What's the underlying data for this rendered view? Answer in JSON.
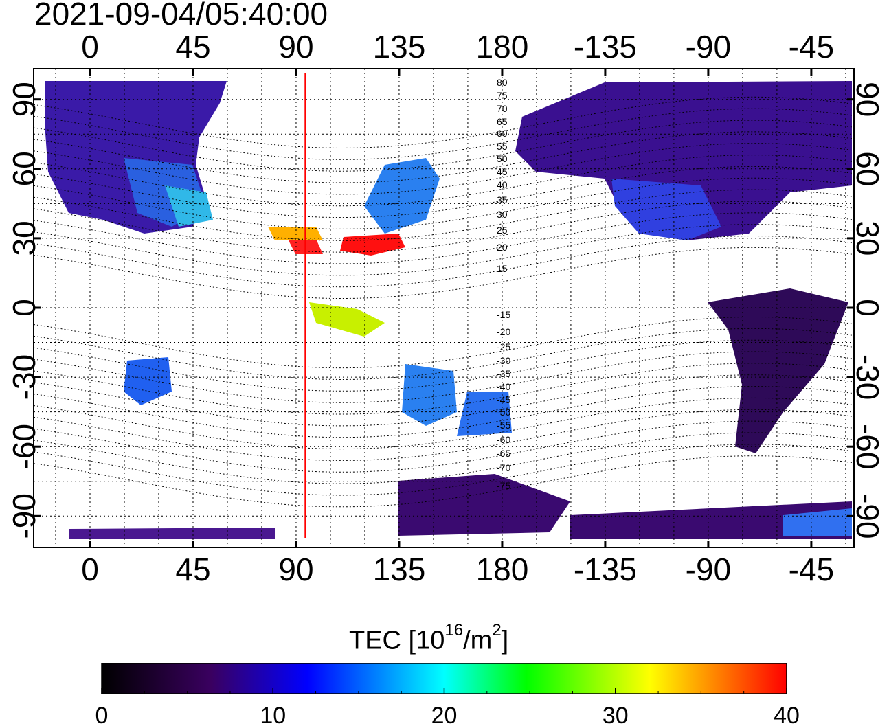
{
  "map": {
    "timestamp": "2021-09-04/05:40:00",
    "lon_ticks_top": [
      "0",
      "45",
      "90",
      "135",
      "180",
      "-135",
      "-90",
      "-45"
    ],
    "lon_ticks_bottom": [
      "0",
      "45",
      "90",
      "135",
      "180",
      "-135",
      "-90",
      "-45"
    ],
    "lat_ticks_left": [
      "90",
      "60",
      "30",
      "0",
      "-30",
      "-60",
      "-90"
    ],
    "lat_ticks_right": [
      "90",
      "60",
      "30",
      "0",
      "-30",
      "-60",
      "-90"
    ],
    "contour_labels_north": [
      "80",
      "75",
      "70",
      "65",
      "60",
      "55",
      "50",
      "45",
      "40",
      "35",
      "30",
      "25",
      "20",
      "15"
    ],
    "contour_labels_south": [
      "-15",
      "-20",
      "-25",
      "-30",
      "-35",
      "-40",
      "-45",
      "-50",
      "-55",
      "-60",
      "-65",
      "-70",
      "-75"
    ],
    "marker_line_longitude": 94,
    "marker_line_color": "#ff0000",
    "projection": "equirectangular, centered at 180"
  },
  "colorbar": {
    "title_prefix": "TEC  [10",
    "title_exp1": "16",
    "title_mid": "/m",
    "title_exp2": "2",
    "title_suffix": "]",
    "min": 0,
    "max": 40,
    "tick_labels": [
      "0",
      "10",
      "20",
      "30",
      "40"
    ],
    "colors": [
      "#000000",
      "#3a0060",
      "#0000ff",
      "#00ffff",
      "#00ff00",
      "#ffff00",
      "#ff0000"
    ]
  }
}
